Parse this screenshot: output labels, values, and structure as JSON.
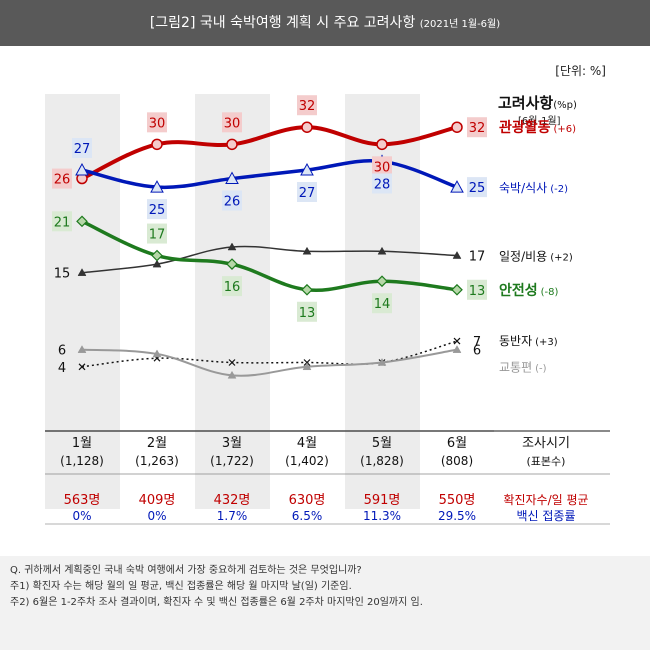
{
  "header": {
    "title": "[그림2] 국내 숙박여행 계획 시 주요 고려사항",
    "subtitle": "(2021년 1월-6월)"
  },
  "chart_data": {
    "type": "line",
    "unit_label": "[단위: %]",
    "legend_title": "고려사항",
    "legend_title_unit": "(%p)",
    "legend_subtitle": "[6월-1월]",
    "categories": [
      {
        "month": "1월",
        "n": "(1,128)"
      },
      {
        "month": "2월",
        "n": "(1,263)"
      },
      {
        "month": "3월",
        "n": "(1,722)"
      },
      {
        "month": "4월",
        "n": "(1,402)"
      },
      {
        "month": "5월",
        "n": "(1,828)"
      },
      {
        "month": "6월",
        "n": "(808)"
      }
    ],
    "x_header": "조사시기",
    "x_header_sub": "(표본수)",
    "ylim": [
      0,
      36
    ],
    "series": [
      {
        "name": "관광활동",
        "change": "(+6)",
        "values": [
          26,
          30,
          30,
          32,
          30,
          32
        ],
        "labels": [
          "26",
          "30",
          "30",
          "32",
          "30",
          "32"
        ],
        "color": "#c00000",
        "label_bg": "#f4cccc",
        "marker": "circle",
        "stroke_width": 4,
        "dashed": false,
        "label_pos": [
          "left",
          "above",
          "above",
          "above",
          "below",
          "right"
        ],
        "name_bold": true
      },
      {
        "name": "숙박/식사",
        "change": "(-2)",
        "values": [
          27,
          25,
          26,
          27,
          28,
          25
        ],
        "labels": [
          "27",
          "25",
          "26",
          "27",
          "28",
          "25"
        ],
        "color": "#0018b8",
        "label_bg": "#dce6f5",
        "marker": "triangle",
        "stroke_width": 3.5,
        "dashed": false,
        "label_pos": [
          "above",
          "below",
          "below",
          "below",
          "below",
          "right"
        ],
        "name_bold": false
      },
      {
        "name": "일정/비용",
        "change": "(+2)",
        "values": [
          15,
          16,
          18,
          17.5,
          17.5,
          17
        ],
        "labels": [
          "15",
          "",
          "",
          "",
          "",
          "17"
        ],
        "color": "#333333",
        "label_bg": "",
        "marker": "triangle-small",
        "stroke_width": 1.5,
        "dashed": false,
        "label_pos": [
          "left",
          "none",
          "none",
          "none",
          "none",
          "right"
        ],
        "name_bold": false
      },
      {
        "name": "안전성",
        "change": "(-8)",
        "values": [
          21,
          17,
          16,
          13,
          14,
          13
        ],
        "labels": [
          "21",
          "17",
          "16",
          "13",
          "14",
          "13"
        ],
        "color": "#1e7a1e",
        "label_bg": "#d9ead3",
        "marker": "diamond",
        "stroke_width": 3.5,
        "dashed": false,
        "label_pos": [
          "left",
          "above",
          "below",
          "below",
          "below",
          "right"
        ],
        "name_bold": true
      },
      {
        "name": "동반자",
        "change": "(+3)",
        "values": [
          4,
          5,
          4.5,
          4.5,
          4.5,
          7
        ],
        "labels": [
          "4",
          "",
          "",
          "",
          "",
          "7"
        ],
        "color": "#111111",
        "label_bg": "",
        "marker": "x",
        "stroke_width": 1.5,
        "dashed": true,
        "label_pos": [
          "left",
          "none",
          "none",
          "none",
          "none",
          "right"
        ],
        "name_bold": false
      },
      {
        "name": "교통편",
        "change": "(-)",
        "values": [
          6,
          5.5,
          3,
          4,
          4.5,
          6
        ],
        "labels": [
          "6",
          "",
          "",
          "",
          "",
          "6"
        ],
        "color": "#999999",
        "label_bg": "",
        "marker": "triangle-small",
        "stroke_width": 2,
        "dashed": false,
        "label_pos": [
          "left",
          "none",
          "none",
          "none",
          "none",
          "right"
        ],
        "name_bold": false
      }
    ],
    "bottom_rows": {
      "cases": [
        "563명",
        "409명",
        "432명",
        "630명",
        "591명",
        "550명"
      ],
      "vaccine": [
        "0%",
        "0%",
        "1.7%",
        "6.5%",
        "11.3%",
        "29.5%"
      ],
      "cases_label": "확진자수/일 평균",
      "vaccine_label": "백신 접종률",
      "cases_color": "#c00000",
      "vaccine_color": "#0018b8"
    }
  },
  "notes": [
    "Q. 귀하께서 계획중인 국내 숙박 여행에서 가장 중요하게 검토하는 것은 무엇입니까?",
    "주1) 확진자 수는 해당 월의 일 평균, 백신 접종률은 해당 월 마지막 날(일) 기준임.",
    "주2) 6월은 1-2주차 조사 결과이며, 확진자 수 및 백신 접종률은 6월 2주차 마지막인 20일까지 임."
  ]
}
